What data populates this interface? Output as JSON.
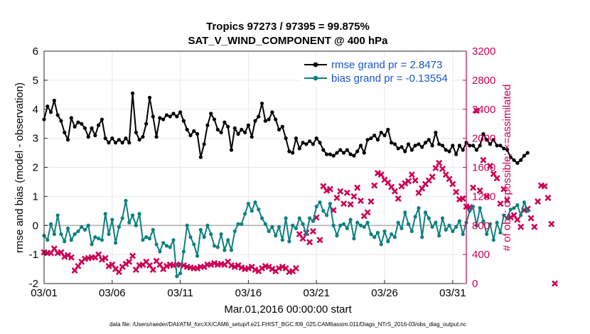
{
  "chart_data": {
    "type": "line",
    "title": "Tropics 97273 / 97395 = 99.875%",
    "subtitle": "SAT_V_WIND_COMPONENT @ 400 hPa",
    "xlabel": "Mar.01,2016 00:00:00 start",
    "ylabel": "rmse and bias (model - observation)",
    "ylabel_right": "# of obs: o=possible; ×=assimilated",
    "footnote": "data file: /Users/raeder/DAI/ATM_forcXX/CAM6_setup/f.e21.FHIST_BGC.f09_025.CAM6assim.011/Diags_NTrS_2016-03/obs_diag_output.nc",
    "x_tick_labels": [
      "03/01",
      "03/06",
      "03/11",
      "03/16",
      "03/21",
      "03/26",
      "03/31"
    ],
    "x_tick_values": [
      1,
      6,
      11,
      16,
      21,
      26,
      31
    ],
    "xlim": [
      1,
      32
    ],
    "ylim": [
      -2,
      6
    ],
    "y_ticks": [
      -2,
      -1,
      0,
      1,
      2,
      3,
      4,
      5,
      6
    ],
    "y_tick_labels": [
      "-2",
      "-1",
      "0",
      "1",
      "2",
      "3",
      "4",
      "5",
      "6"
    ],
    "ylim_right": [
      0,
      3200
    ],
    "y_ticks_right": [
      0,
      400,
      800,
      1200,
      1600,
      2000,
      2400,
      2800,
      3200
    ],
    "y_tick_labels_right": [
      "0",
      "400",
      "800",
      "1200",
      "1600",
      "2000",
      "2400",
      "2800",
      "3200"
    ],
    "zero_line": 0,
    "grid": true,
    "legend_position": "top-right",
    "x_step": 0.25,
    "series": [
      {
        "name": "rmse grand pr = 2.8473",
        "axis": "left",
        "color": "#000000",
        "x_start": 1.0,
        "values": [
          3.65,
          4.1,
          3.9,
          4.3,
          3.8,
          3.6,
          3.2,
          2.95,
          3.7,
          3.4,
          3.55,
          3.5,
          3.35,
          3.05,
          3.35,
          3.1,
          3.45,
          3.65,
          3.0,
          2.85,
          3.0,
          2.85,
          2.95,
          2.85,
          3.0,
          2.85,
          4.55,
          3.2,
          2.95,
          3.05,
          3.5,
          4.4,
          3.75,
          3.05,
          3.7,
          3.65,
          3.8,
          3.75,
          3.85,
          3.75,
          3.9,
          3.6,
          3.3,
          3.1,
          3.25,
          3.15,
          2.35,
          2.8,
          3.45,
          3.85,
          3.65,
          3.3,
          3.2,
          3.55,
          3.4,
          2.6,
          3.35,
          3.15,
          3.3,
          3.2,
          3.45,
          3.05,
          3.6,
          3.75,
          4.2,
          3.6,
          3.65,
          3.9,
          3.65,
          3.3,
          3.4,
          3.0,
          2.55,
          2.5,
          3.0,
          2.65,
          2.85,
          2.8,
          2.9,
          2.8,
          3.0,
          2.85,
          2.6,
          2.45,
          2.45,
          2.4,
          2.5,
          2.6,
          2.5,
          2.6,
          2.45,
          2.4,
          2.55,
          2.75,
          2.5,
          2.95,
          3.0,
          3.1,
          2.95,
          3.2,
          3.1,
          3.3,
          2.85,
          2.8,
          2.65,
          2.7,
          2.55,
          2.8,
          2.6,
          2.75,
          2.8,
          2.7,
          2.85,
          2.95,
          2.75,
          3.2,
          2.8,
          2.75,
          2.6,
          2.55,
          2.75,
          2.45,
          2.75,
          2.6,
          2.85,
          2.75,
          2.75,
          2.6,
          2.75,
          3.15,
          2.95,
          2.8,
          2.95,
          2.75,
          2.75,
          2.65,
          2.6,
          2.35,
          2.25,
          2.15,
          2.25,
          2.4,
          2.5
        ]
      },
      {
        "name": "bias grand pr = -0.13554",
        "axis": "left",
        "color": "#0e8080",
        "x_start": 1.0,
        "values": [
          -0.35,
          -0.5,
          0.05,
          -0.3,
          0.35,
          -0.3,
          -0.55,
          -0.1,
          -0.5,
          -0.3,
          -0.2,
          -0.05,
          -0.15,
          0.0,
          -0.65,
          -0.4,
          -0.45,
          -0.5,
          0.4,
          -0.3,
          0.2,
          -0.6,
          -0.05,
          0.25,
          0.85,
          0.1,
          0.35,
          0.0,
          0.4,
          -0.5,
          -0.4,
          -0.45,
          -0.15,
          -0.65,
          -0.9,
          -0.6,
          -0.7,
          -0.75,
          -0.5,
          -1.75,
          -1.65,
          -0.9,
          0.0,
          -0.4,
          -0.65,
          -1.05,
          -0.15,
          -0.4,
          0.0,
          -0.3,
          -0.7,
          -0.75,
          -0.3,
          -0.85,
          -0.5,
          -0.85,
          -0.2,
          0.05,
          0.05,
          0.4,
          0.75,
          0.5,
          0.8,
          0.55,
          0.25,
          0.05,
          -0.2,
          -0.05,
          -0.35,
          -0.05,
          -0.5,
          0.25,
          -0.55,
          0.0,
          -0.1,
          0.25,
          0.05,
          -0.3,
          0.25,
          0.15,
          0.65,
          0.8,
          0.5,
          0.35,
          0.75,
          0.0,
          -0.35,
          0.0,
          0.05,
          -0.1,
          0.2,
          -0.45,
          0.1,
          0.0,
          -0.05,
          0.1,
          -0.3,
          -0.4,
          -0.25,
          -0.65,
          -0.2,
          -0.55,
          -0.3,
          -0.4,
          0.1,
          -0.1,
          0.45,
          0.05,
          -0.2,
          0.3,
          0.6,
          -0.4,
          0.45,
          0.25,
          -0.05,
          0.1,
          -0.35,
          0.25,
          -0.15,
          0.0,
          -0.2,
          -0.05,
          0.15,
          -0.3,
          0.1,
          0.5,
          0.65,
          0.0,
          0.6,
          0.15,
          -0.3,
          0.05,
          -0.5,
          0.1,
          -0.25,
          0.35,
          0.25,
          0.55,
          0.6,
          0.7,
          0.35,
          0.8,
          0.5
        ]
      },
      {
        "name": "# assimilated",
        "axis": "right",
        "color": "#cc0055",
        "marker": "x",
        "x_start": 1.0,
        "values": [
          430,
          420,
          420,
          480,
          420,
          430,
          370,
          390,
          360,
          180,
          240,
          300,
          340,
          350,
          360,
          360,
          400,
          330,
          350,
          240,
          260,
          200,
          160,
          230,
          270,
          300,
          380,
          190,
          250,
          260,
          300,
          250,
          190,
          310,
          260,
          200,
          240,
          260,
          250,
          260,
          260,
          250,
          230,
          220,
          210,
          210,
          230,
          230,
          260,
          260,
          280,
          260,
          270,
          260,
          300,
          250,
          230,
          250,
          220,
          200,
          210,
          230,
          190,
          170,
          210,
          240,
          230,
          200,
          170,
          210,
          230,
          210,
          160,
          170,
          210,
          680,
          620,
          700,
          570,
          720,
          910,
          600,
          1340,
          1280,
          1300,
          1010,
          1180,
          1270,
          1100,
          1250,
          1090,
          1200,
          1320,
          1140,
          930,
          980,
          1130,
          1350,
          1520,
          1500,
          1430,
          1390,
          1330,
          1270,
          1170,
          1340,
          1380,
          1410,
          1500,
          1420,
          1250,
          1310,
          1370,
          1420,
          1470,
          1590,
          1660,
          1580,
          1500,
          1440,
          1370,
          1260,
          1160,
          1170,
          1060,
          1050,
          1320,
          2380,
          1280,
          1700,
          1200,
          1620,
          1510,
          1450,
          1100,
          1300,
          1150,
          910,
          940,
          880,
          780,
          1010,
          1030,
          900,
          780,
          1130,
          1350,
          1340,
          1180,
          820,
          0
        ]
      }
    ]
  }
}
